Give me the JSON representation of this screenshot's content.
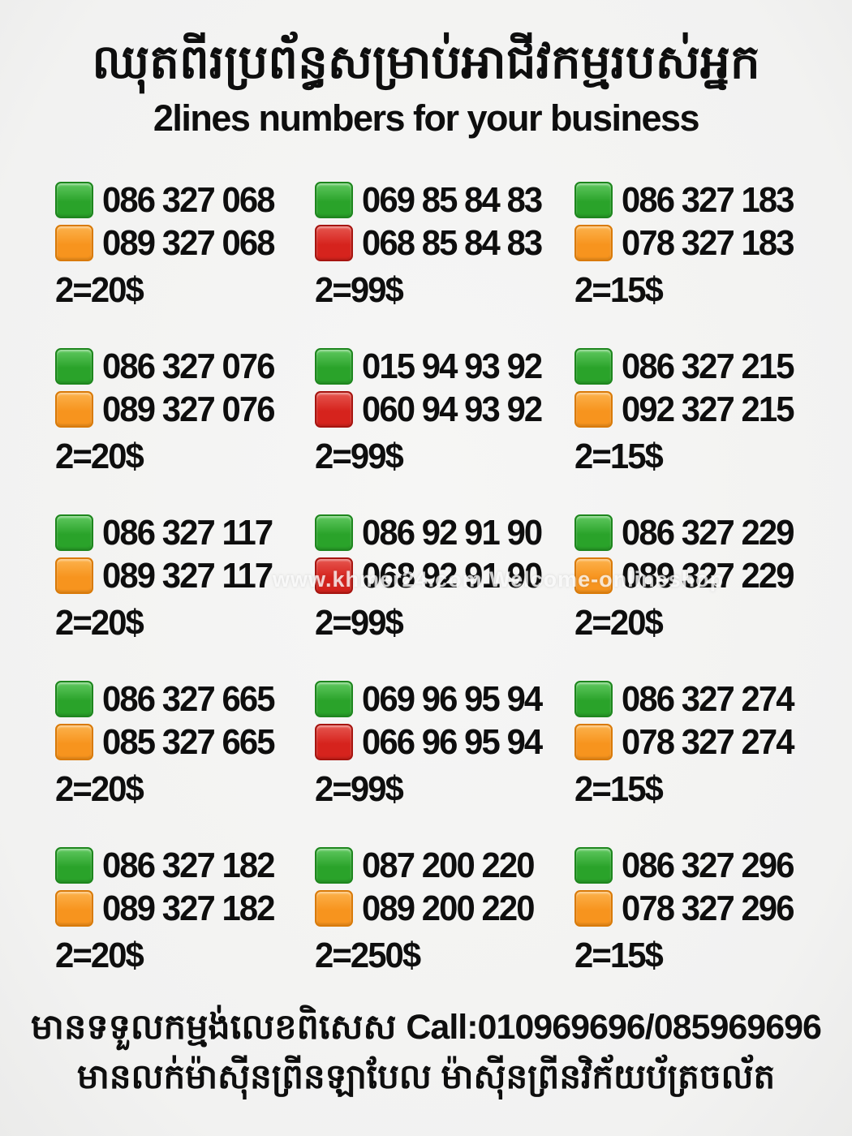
{
  "header": {
    "title_khmer": "ឈុតពីរប្រព័ន្ធសម្រាប់អាជីវកម្មរបស់អ្នក",
    "title_english": "2lines numbers for your business"
  },
  "colors": {
    "green-base": "#2aa32a",
    "green-light": "#5fc85f",
    "green-border": "#1d861d",
    "orange-base": "#f7941e",
    "orange-light": "#fcb24c",
    "orange-border": "#d97a08",
    "red-base": "#d6231d",
    "red-light": "#e6564f",
    "red-border": "#a6140f",
    "text": "#0e0e0e",
    "background": "#f2f2f1"
  },
  "watermark": "www.khmer24.com Welcome-onlineshop",
  "listings": [
    {
      "line1": {
        "color": "green",
        "number": "086 327 068"
      },
      "line2": {
        "color": "orange",
        "number": "089 327 068"
      },
      "price": "2=20$"
    },
    {
      "line1": {
        "color": "green",
        "number": "069 85 84 83"
      },
      "line2": {
        "color": "red",
        "number": "068 85 84 83"
      },
      "price": "2=99$"
    },
    {
      "line1": {
        "color": "green",
        "number": "086 327 183"
      },
      "line2": {
        "color": "orange",
        "number": "078 327 183"
      },
      "price": "2=15$"
    },
    {
      "line1": {
        "color": "green",
        "number": "086 327 076"
      },
      "line2": {
        "color": "orange",
        "number": "089 327 076"
      },
      "price": "2=20$"
    },
    {
      "line1": {
        "color": "green",
        "number": "015 94 93 92"
      },
      "line2": {
        "color": "red",
        "number": "060 94 93 92"
      },
      "price": "2=99$"
    },
    {
      "line1": {
        "color": "green",
        "number": "086 327 215"
      },
      "line2": {
        "color": "orange",
        "number": "092 327 215"
      },
      "price": "2=15$"
    },
    {
      "line1": {
        "color": "green",
        "number": "086 327 117"
      },
      "line2": {
        "color": "orange",
        "number": "089 327 117"
      },
      "price": "2=20$"
    },
    {
      "line1": {
        "color": "green",
        "number": "086 92 91 90"
      },
      "line2": {
        "color": "red",
        "number": "068 92 91 90"
      },
      "price": "2=99$"
    },
    {
      "line1": {
        "color": "green",
        "number": "086 327 229"
      },
      "line2": {
        "color": "orange",
        "number": "089 327 229"
      },
      "price": "2=20$"
    },
    {
      "line1": {
        "color": "green",
        "number": "086 327 665"
      },
      "line2": {
        "color": "orange",
        "number": "085 327 665"
      },
      "price": "2=20$"
    },
    {
      "line1": {
        "color": "green",
        "number": "069 96 95 94"
      },
      "line2": {
        "color": "red",
        "number": "066 96 95 94"
      },
      "price": "2=99$"
    },
    {
      "line1": {
        "color": "green",
        "number": "086 327 274"
      },
      "line2": {
        "color": "orange",
        "number": "078 327 274"
      },
      "price": "2=15$"
    },
    {
      "line1": {
        "color": "green",
        "number": "086 327 182"
      },
      "line2": {
        "color": "orange",
        "number": "089 327 182"
      },
      "price": "2=20$"
    },
    {
      "line1": {
        "color": "green",
        "number": "087 200 220"
      },
      "line2": {
        "color": "orange",
        "number": "089 200 220"
      },
      "price": "2=250$"
    },
    {
      "line1": {
        "color": "green",
        "number": "086 327 296"
      },
      "line2": {
        "color": "orange",
        "number": "078 327 296"
      },
      "price": "2=15$"
    }
  ],
  "footer": {
    "line1_khmer": "មានទទួលកម្មង់លេខពិសេស",
    "line1_call": "Call:010969696/085969696",
    "line2_khmer": "មានលក់ម៉ាស៊ីនព្រីនឡាបែល ម៉ាស៊ីនព្រីនវិក័យប័ត្រចល័ត"
  }
}
